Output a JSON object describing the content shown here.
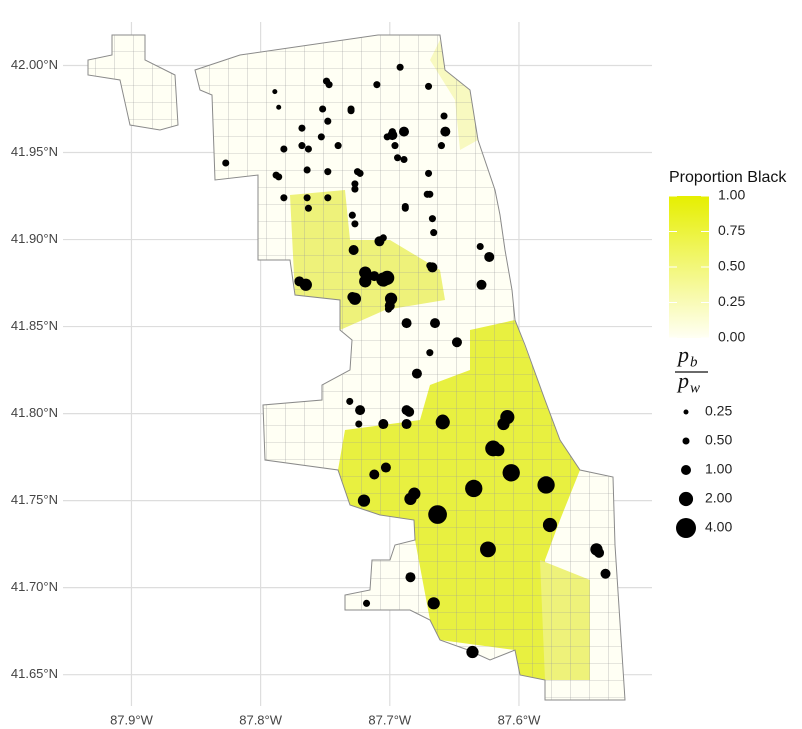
{
  "chart_data": {
    "type": "bubble-map",
    "xlim": [
      -87.953,
      -87.497
    ],
    "ylim": [
      41.632,
      42.025
    ],
    "xticks": [
      {
        "value": -87.9,
        "label": "87.9°W"
      },
      {
        "value": -87.8,
        "label": "87.8°W"
      },
      {
        "value": -87.7,
        "label": "87.7°W"
      },
      {
        "value": -87.6,
        "label": "87.6°W"
      }
    ],
    "yticks": [
      {
        "value": 41.65,
        "label": "41.65°N"
      },
      {
        "value": 41.7,
        "label": "41.70°N"
      },
      {
        "value": 41.75,
        "label": "41.75°N"
      },
      {
        "value": 41.8,
        "label": "41.80°N"
      },
      {
        "value": 41.85,
        "label": "41.85°N"
      },
      {
        "value": 41.9,
        "label": "41.90°N"
      },
      {
        "value": 41.95,
        "label": "41.95°N"
      },
      {
        "value": 42.0,
        "label": "42.00°N"
      }
    ],
    "grid": true,
    "color_legend": {
      "title": "Proportion Black",
      "low_color": "#fffff4",
      "high_color": "#e6ef00",
      "ticks": [
        {
          "value": 0,
          "label": "0.00"
        },
        {
          "value": 0.25,
          "label": "0.25"
        },
        {
          "value": 0.5,
          "label": "0.50"
        },
        {
          "value": 0.75,
          "label": "0.75"
        },
        {
          "value": 1,
          "label": "1.00"
        }
      ]
    },
    "size_legend": {
      "title": {
        "numerator": "p",
        "numerator_sub": "b",
        "denominator": "p",
        "denominator_sub": "w"
      },
      "sizes": [
        {
          "value": 0.25,
          "label": "0.25"
        },
        {
          "value": 0.5,
          "label": "0.50"
        },
        {
          "value": 1,
          "label": "1.00"
        },
        {
          "value": 2,
          "label": "2.00"
        },
        {
          "value": 4,
          "label": "4.00"
        }
      ]
    },
    "series": [
      {
        "color": "#000000",
        "x": [
          -87.692,
          -87.789,
          -87.749,
          -87.747,
          -87.71,
          -87.67,
          -87.786,
          -87.73,
          -87.752,
          -87.73,
          -87.658,
          -87.748,
          -87.768,
          -87.698,
          -87.698,
          -87.689,
          -87.657,
          -87.702,
          -87.753,
          -87.782,
          -87.768,
          -87.74,
          -87.763,
          -87.66,
          -87.696,
          -87.694,
          -87.689,
          -87.827,
          -87.748,
          -87.725,
          -87.723,
          -87.67,
          -87.788,
          -87.786,
          -87.727,
          -87.764,
          -87.782,
          -87.764,
          -87.748,
          -87.763,
          -87.671,
          -87.669,
          -87.727,
          -87.729,
          -87.727,
          -87.688,
          -87.688,
          -87.667,
          -87.666,
          -87.708,
          -87.705,
          -87.63,
          -87.623,
          -87.728,
          -87.719,
          -87.719,
          -87.705,
          -87.702,
          -87.712,
          -87.667,
          -87.669,
          -87.77,
          -87.765,
          -87.727,
          -87.729,
          -87.699,
          -87.7,
          -87.701,
          -87.629,
          -87.687,
          -87.665,
          -87.648,
          -87.669,
          -87.679,
          -87.731,
          -87.723,
          -87.724,
          -87.705,
          -87.687,
          -87.685,
          -87.687,
          -87.659,
          -87.659,
          -87.609,
          -87.612,
          -87.62,
          -87.616,
          -87.606,
          -87.579,
          -87.576,
          -87.635,
          -87.663,
          -87.624,
          -87.703,
          -87.712,
          -87.72,
          -87.681,
          -87.684,
          -87.54,
          -87.538,
          -87.533,
          -87.684,
          -87.666,
          -87.718,
          -87.636
        ],
        "y": [
          41.999,
          41.985,
          41.991,
          41.989,
          41.989,
          41.988,
          41.976,
          41.975,
          41.975,
          41.974,
          41.971,
          41.968,
          41.964,
          41.962,
          41.96,
          41.962,
          41.962,
          41.959,
          41.959,
          41.952,
          41.954,
          41.954,
          41.952,
          41.954,
          41.954,
          41.947,
          41.946,
          41.944,
          41.939,
          41.939,
          41.938,
          41.938,
          41.937,
          41.936,
          41.932,
          41.94,
          41.924,
          41.924,
          41.924,
          41.918,
          41.926,
          41.926,
          41.929,
          41.914,
          41.909,
          41.919,
          41.918,
          41.912,
          41.904,
          41.899,
          41.901,
          41.896,
          41.89,
          41.894,
          41.881,
          41.876,
          41.877,
          41.878,
          41.879,
          41.884,
          41.885,
          41.876,
          41.874,
          41.866,
          41.867,
          41.866,
          41.862,
          41.86,
          41.874,
          41.852,
          41.852,
          41.841,
          41.835,
          41.823,
          41.807,
          41.802,
          41.794,
          41.794,
          41.802,
          41.801,
          41.794,
          41.795,
          41.796,
          41.798,
          41.794,
          41.78,
          41.779,
          41.766,
          41.759,
          41.736,
          41.757,
          41.742,
          41.722,
          41.769,
          41.765,
          41.75,
          41.754,
          41.751,
          41.722,
          41.72,
          41.708,
          41.706,
          41.691,
          41.691,
          41.663
        ],
        "sizes": [
          0.5,
          0.25,
          0.5,
          0.5,
          0.5,
          0.5,
          0.25,
          0.5,
          0.5,
          0.5,
          0.5,
          0.5,
          0.5,
          0.5,
          1,
          1,
          1,
          0.5,
          0.5,
          0.5,
          0.5,
          0.5,
          0.5,
          0.5,
          0.5,
          0.5,
          0.5,
          0.5,
          0.5,
          0.5,
          0.5,
          0.5,
          0.5,
          0.5,
          0.5,
          0.5,
          0.5,
          0.5,
          0.5,
          0.5,
          0.5,
          0.5,
          0.5,
          0.5,
          0.5,
          0.5,
          0.5,
          0.5,
          0.5,
          1,
          0.5,
          0.5,
          1,
          1,
          1.5,
          1.5,
          2,
          2,
          1,
          1,
          0.5,
          1,
          1.5,
          1.5,
          1,
          1.5,
          1,
          0.5,
          1,
          1,
          1,
          1,
          0.5,
          1,
          0.5,
          1,
          0.5,
          1,
          1,
          1,
          1,
          2,
          1.5,
          2,
          1.5,
          2.5,
          1.5,
          3,
          3,
          2,
          3,
          3.5,
          2.5,
          1,
          1,
          1.5,
          1.5,
          1.5,
          1.5,
          1,
          1,
          1,
          1.5,
          0.5,
          1.5
        ]
      }
    ]
  }
}
